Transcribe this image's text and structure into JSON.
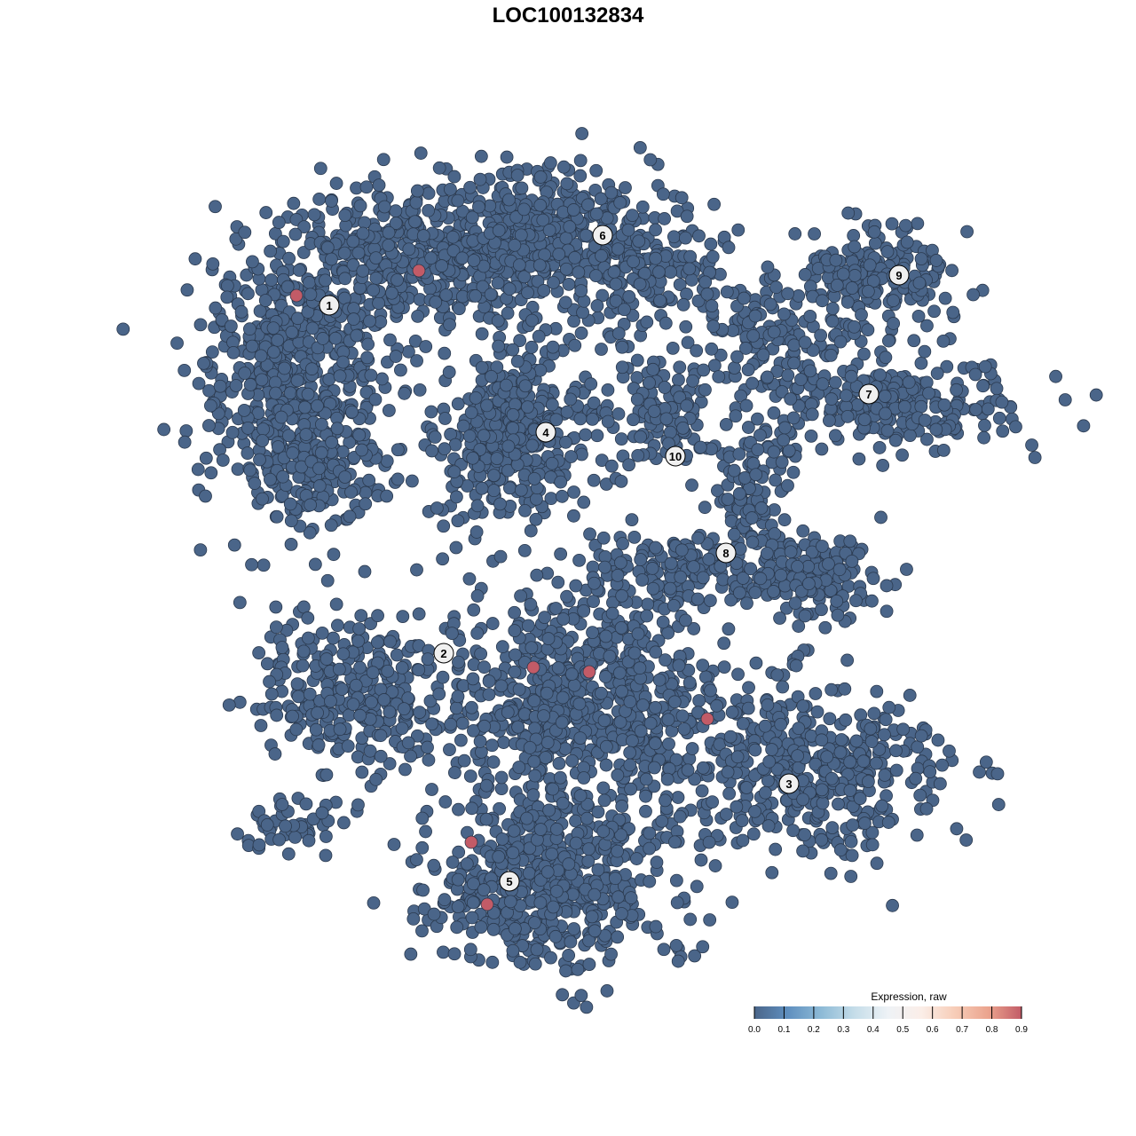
{
  "chart_data": {
    "type": "scatter",
    "title": "LOC100132834",
    "xlabel": "",
    "ylabel": "",
    "xlim": [
      -45,
      50
    ],
    "ylim": [
      -46,
      46
    ],
    "grid": false,
    "point_colors": {
      "low": "#4a6589",
      "high": "#c25b67",
      "outline": "#2b3a4f"
    },
    "background_value": 0.0,
    "point_density_regions": [
      {
        "center": [
          -31,
          22
        ],
        "spread": [
          5.5,
          7
        ],
        "count": 500
      },
      {
        "center": [
          -17,
          35
        ],
        "spread": [
          8,
          4
        ],
        "count": 450
      },
      {
        "center": [
          -4,
          38
        ],
        "spread": [
          6,
          3.5
        ],
        "count": 350
      },
      {
        "center": [
          9,
          34
        ],
        "spread": [
          5,
          4
        ],
        "count": 200
      },
      {
        "center": [
          -29,
          11
        ],
        "spread": [
          4,
          3
        ],
        "count": 150
      },
      {
        "center": [
          -6,
          15
        ],
        "spread": [
          4.5,
          4.5
        ],
        "count": 400
      },
      {
        "center": [
          23,
          26
        ],
        "spread": [
          4,
          3
        ],
        "count": 120
      },
      {
        "center": [
          35,
          33
        ],
        "spread": [
          5,
          3
        ],
        "count": 200
      },
      {
        "center": [
          37,
          18.5
        ],
        "spread": [
          7,
          2.5
        ],
        "count": 250
      },
      {
        "center": [
          11,
          18
        ],
        "spread": [
          4,
          3.5
        ],
        "count": 120
      },
      {
        "center": [
          21,
          8
        ],
        "spread": [
          2.5,
          4
        ],
        "count": 120
      },
      {
        "center": [
          12,
          0
        ],
        "spread": [
          5,
          2
        ],
        "count": 150
      },
      {
        "center": [
          28,
          -1
        ],
        "spread": [
          3.5,
          2.5
        ],
        "count": 150
      },
      {
        "center": [
          -25,
          -14
        ],
        "spread": [
          5,
          4.5
        ],
        "count": 300
      },
      {
        "center": [
          1,
          -15
        ],
        "spread": [
          8,
          6
        ],
        "count": 700
      },
      {
        "center": [
          26,
          -23
        ],
        "spread": [
          8,
          5
        ],
        "count": 450
      },
      {
        "center": [
          -2,
          -35
        ],
        "spread": [
          7,
          5
        ],
        "count": 550
      },
      {
        "center": [
          -30,
          -29
        ],
        "spread": [
          3,
          1.5
        ],
        "count": 50
      }
    ],
    "highlighted_points": [
      {
        "x": -30.6,
        "y": 30.7,
        "value": 0.9
      },
      {
        "x": -16.8,
        "y": 33.5,
        "value": 0.9
      },
      {
        "x": -3.9,
        "y": -11.2,
        "value": 0.9
      },
      {
        "x": 2.4,
        "y": -11.7,
        "value": 0.9
      },
      {
        "x": 15.7,
        "y": -17.0,
        "value": 0.9
      },
      {
        "x": -10.9,
        "y": -30.9,
        "value": 0.9
      },
      {
        "x": -9.1,
        "y": -37.9,
        "value": 0.9
      }
    ],
    "cluster_labels": [
      {
        "label": "1",
        "x": -26.9,
        "y": 29.6
      },
      {
        "label": "2",
        "x": -14.0,
        "y": -9.6
      },
      {
        "label": "3",
        "x": 24.9,
        "y": -24.3
      },
      {
        "label": "4",
        "x": -2.5,
        "y": 15.3
      },
      {
        "label": "5",
        "x": -6.6,
        "y": -35.3
      },
      {
        "label": "6",
        "x": 3.9,
        "y": 37.5
      },
      {
        "label": "7",
        "x": 33.9,
        "y": 19.6
      },
      {
        "label": "8",
        "x": 17.8,
        "y": 1.7
      },
      {
        "label": "9",
        "x": 37.3,
        "y": 33.0
      },
      {
        "label": "10",
        "x": 12.1,
        "y": 12.6
      }
    ],
    "legend": {
      "title": "Expression, raw",
      "placement": "bottom-right",
      "ticks": [
        "0.0",
        "0.1",
        "0.2",
        "0.3",
        "0.4",
        "0.5",
        "0.6",
        "0.7",
        "0.8",
        "0.9"
      ],
      "colors": [
        "#4a6589",
        "#5f8fbf",
        "#8dbad6",
        "#c5dde9",
        "#eef2f6",
        "#fbeee8",
        "#f7cdb8",
        "#eba48e",
        "#c25b67"
      ]
    }
  }
}
